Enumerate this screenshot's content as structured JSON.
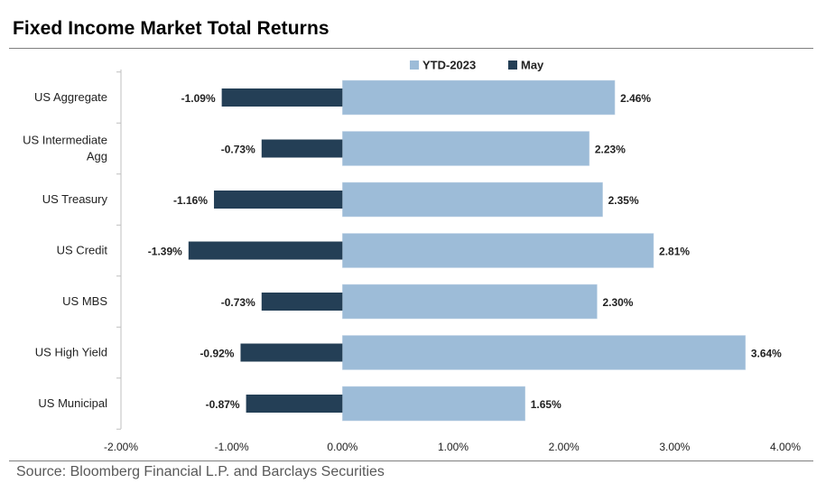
{
  "title": "Fixed Income Market Total Returns",
  "source": "Source: Bloomberg Financial L.P. and Barclays Securities",
  "chart_data": {
    "type": "bar",
    "orientation": "horizontal",
    "categories": [
      [
        "US Aggregate"
      ],
      [
        "US Intermediate",
        "Agg"
      ],
      [
        "US Treasury"
      ],
      [
        "US Credit"
      ],
      [
        "US MBS"
      ],
      [
        "US High Yield"
      ],
      [
        "US Municipal"
      ]
    ],
    "series": [
      {
        "name": "YTD-2023",
        "color": "#9dbcd8",
        "values": [
          2.46,
          2.23,
          2.35,
          2.81,
          2.3,
          3.64,
          1.65
        ],
        "labels": [
          "2.46%",
          "2.23%",
          "2.35%",
          "2.81%",
          "2.30%",
          "3.64%",
          "1.65%"
        ]
      },
      {
        "name": "May",
        "color": "#243f56",
        "values": [
          -1.09,
          -0.73,
          -1.16,
          -1.39,
          -0.73,
          -0.92,
          -0.87
        ],
        "labels": [
          "-1.09%",
          "-0.73%",
          "-1.16%",
          "-1.39%",
          "-0.73%",
          "-0.92%",
          "-0.87%"
        ]
      }
    ],
    "xlim": [
      -2.0,
      4.0
    ],
    "xticks": [
      -2,
      -1,
      0,
      1,
      2,
      3,
      4
    ],
    "xtick_labels": [
      "-2.00%",
      "-1.00%",
      "0.00%",
      "1.00%",
      "2.00%",
      "3.00%",
      "4.00%"
    ],
    "legend_position": "top",
    "grid": false
  }
}
